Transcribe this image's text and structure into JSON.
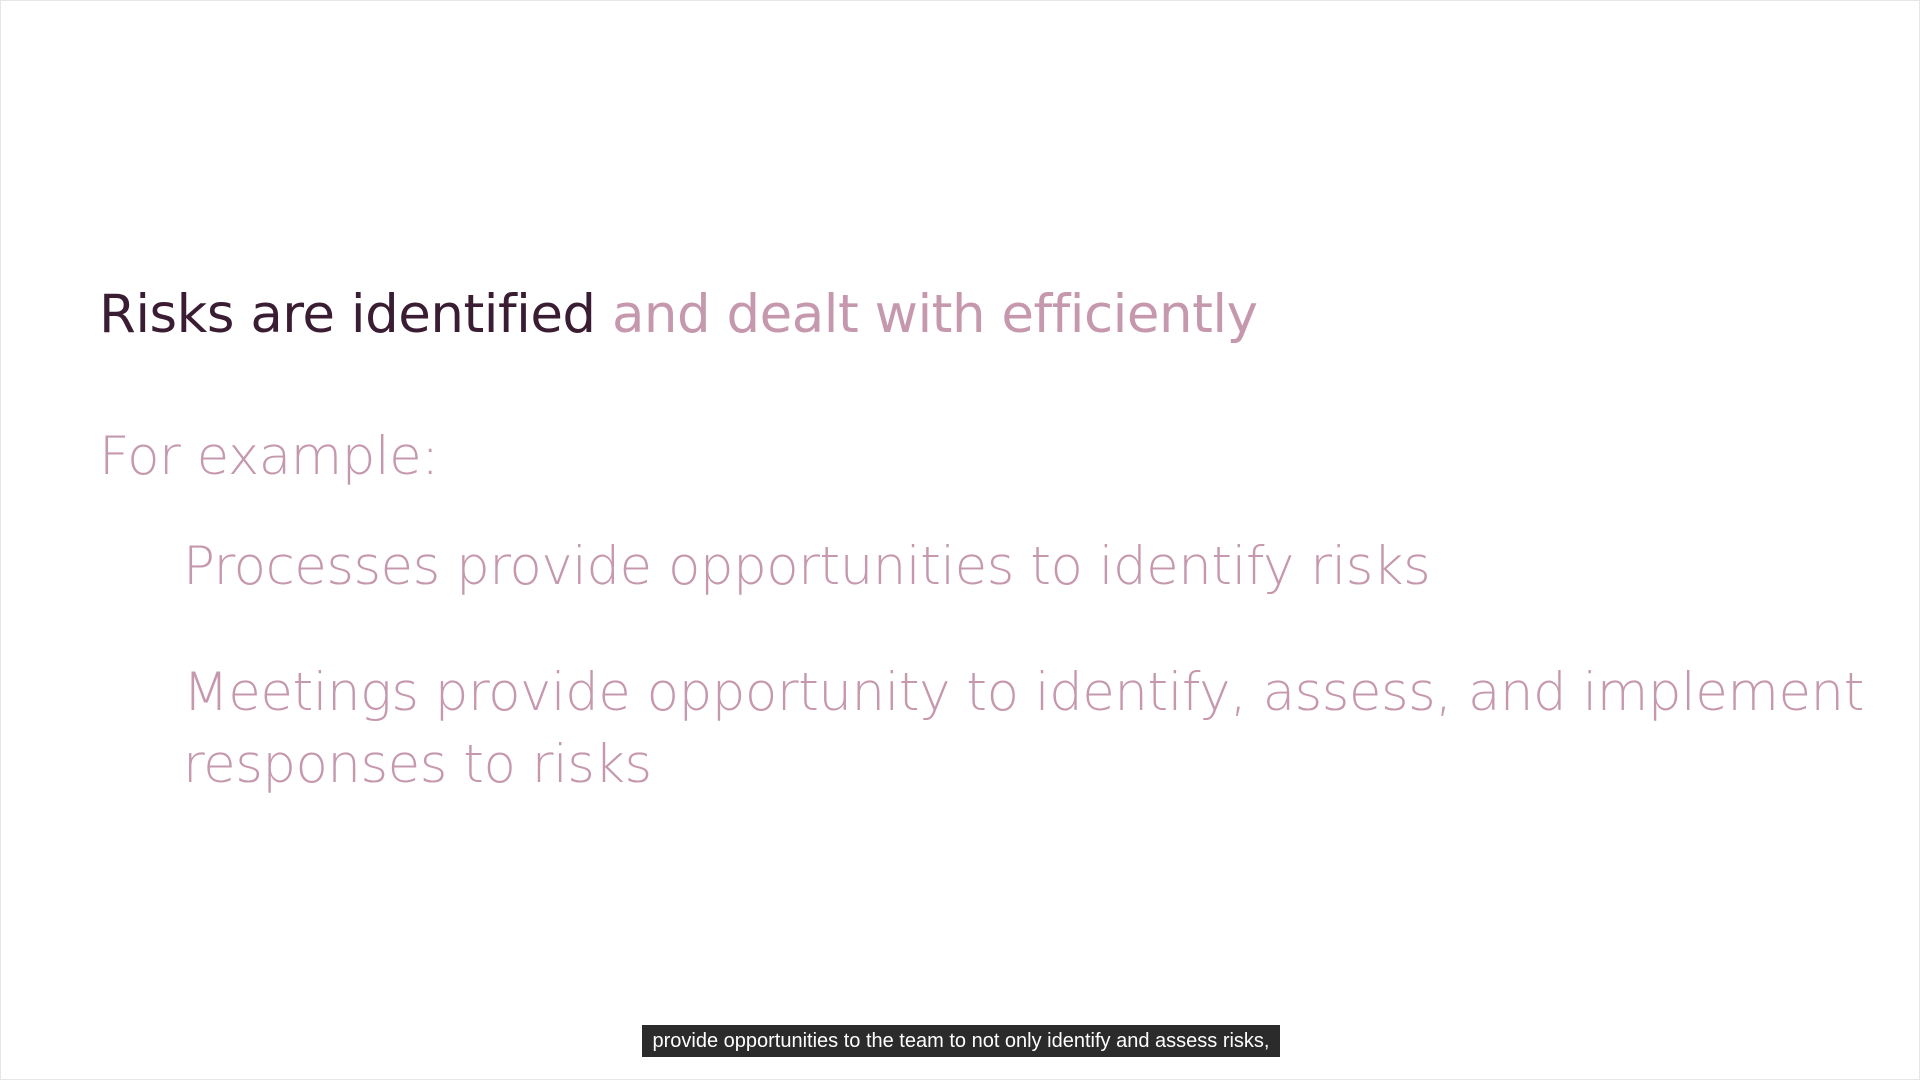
{
  "slide": {
    "headline_strong": "Risks are identified",
    "headline_faded": "and dealt with efficiently",
    "example_label": "For example:",
    "bullets": [
      "Processes provide opportunities to identify risks",
      "Meetings provide opportunity to identify, assess, and implement responses to risks"
    ]
  },
  "caption": {
    "text": "provide opportunities to the team to not only identify and assess risks,"
  },
  "colors": {
    "strong_text": "#3a1c33",
    "faded_text": "#c698ae",
    "caption_bg": "#2b2b2b"
  }
}
